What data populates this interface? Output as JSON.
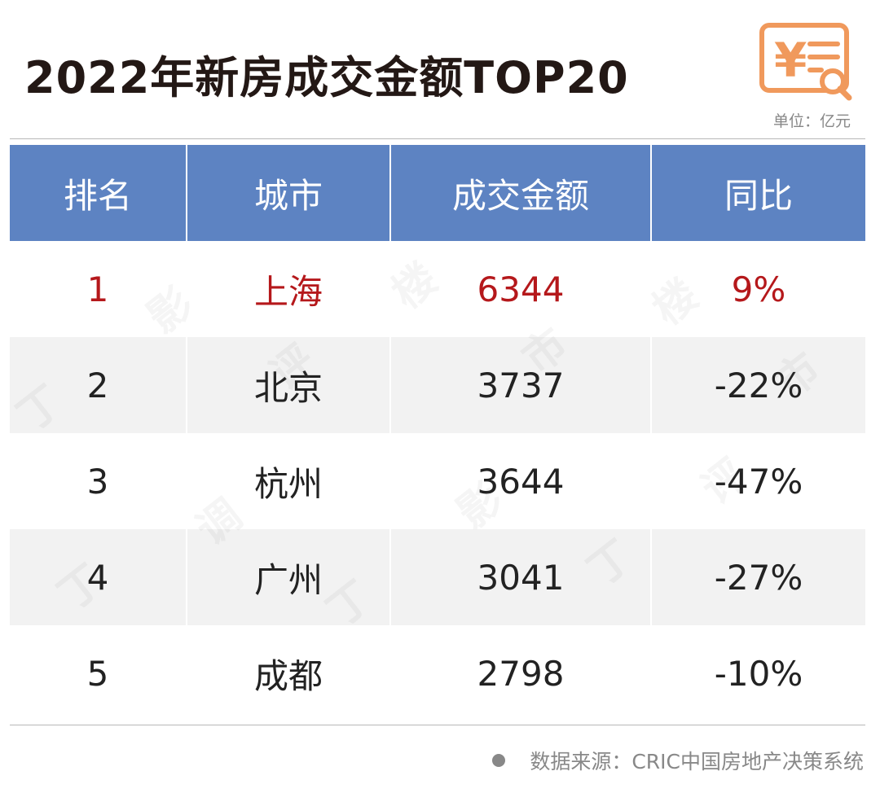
{
  "title": "2022年新房成交金额TOP20",
  "logo_icon": "yuan-receipt-search-icon",
  "unit": "单位：亿元",
  "table": {
    "headers": [
      "排名",
      "城市",
      "成交金额",
      "同比"
    ],
    "rows": [
      {
        "rank": "1",
        "city": "上海",
        "amount": "6344",
        "yoy": "9%"
      },
      {
        "rank": "2",
        "city": "北京",
        "amount": "3737",
        "yoy": "-22%"
      },
      {
        "rank": "3",
        "city": "杭州",
        "amount": "3644",
        "yoy": "-47%"
      },
      {
        "rank": "4",
        "city": "广州",
        "amount": "3041",
        "yoy": "-27%"
      },
      {
        "rank": "5",
        "city": "成都",
        "amount": "2798",
        "yoy": "-10%"
      }
    ]
  },
  "source": "数据来源：CRIC中国房地产决策系统",
  "colors": {
    "header_bg": "#5d83c2",
    "highlight_text": "#b5181b",
    "logo_orange": "#f0995c",
    "stripe_bg": "#f2f2f2"
  }
}
